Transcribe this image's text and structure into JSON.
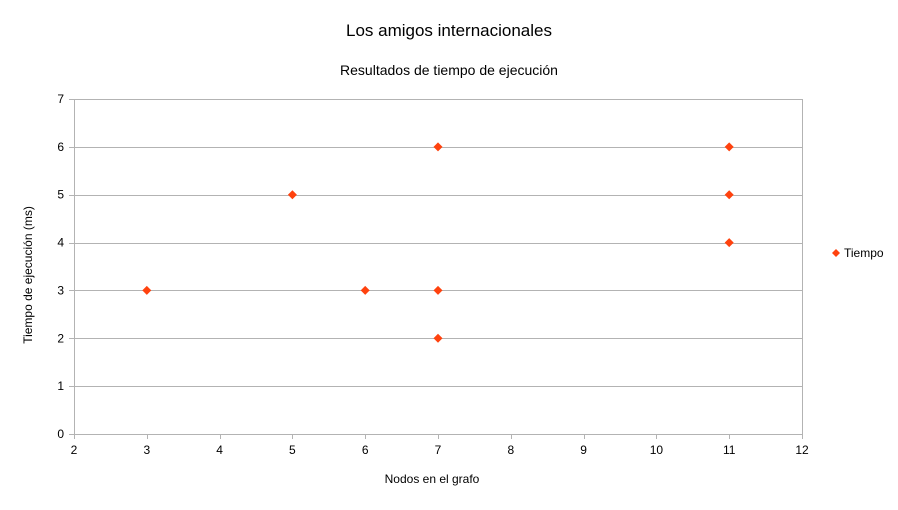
{
  "chart_data": {
    "type": "scatter",
    "title": "Los amigos internacionales",
    "subtitle": "Resultados de tiempo de ejecución",
    "xlabel": "Nodos en el grafo",
    "ylabel": "Tiempo de ejecución (ms)",
    "xlim": [
      2,
      12
    ],
    "ylim": [
      0,
      7
    ],
    "x_ticks": [
      2,
      3,
      4,
      5,
      6,
      7,
      8,
      9,
      10,
      11,
      12
    ],
    "y_ticks": [
      0,
      1,
      2,
      3,
      4,
      5,
      6,
      7
    ],
    "grid": "horizontal",
    "legend_position": "right",
    "series": [
      {
        "name": "Tiempo",
        "color": "#ff420e",
        "marker": "diamond",
        "points": [
          {
            "x": 3,
            "y": 3
          },
          {
            "x": 5,
            "y": 5
          },
          {
            "x": 6,
            "y": 3
          },
          {
            "x": 7,
            "y": 6
          },
          {
            "x": 7,
            "y": 3
          },
          {
            "x": 7,
            "y": 2
          },
          {
            "x": 11,
            "y": 6
          },
          {
            "x": 11,
            "y": 5
          },
          {
            "x": 11,
            "y": 4
          }
        ]
      }
    ]
  }
}
